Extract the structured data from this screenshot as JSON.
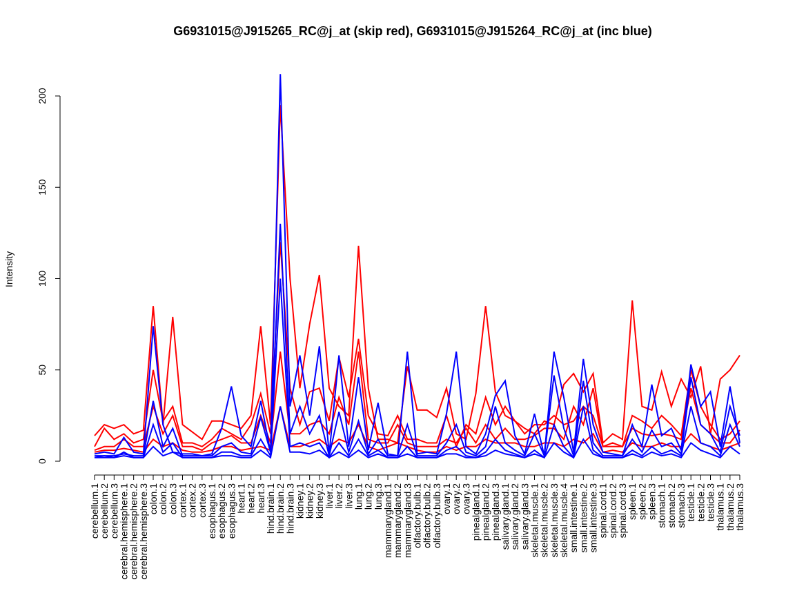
{
  "chart_data": {
    "type": "line",
    "title": "G6931015@J915265_RC@j_at (skip red), G6931015@J915264_RC@j_at (inc blue)",
    "xlabel": "",
    "ylabel": "Intensity",
    "ylim": [
      0,
      212
    ],
    "yticks": [
      0,
      50,
      100,
      150,
      200
    ],
    "grid": false,
    "categories": [
      "cerebellum.1",
      "cerebellum.2",
      "cerebellum.3",
      "cerebral.hemisphere.1",
      "cerebral.hemisphere.2",
      "cerebral.hemisphere.3",
      "colon.1",
      "colon.2",
      "colon.3",
      "cortex.1",
      "cortex.2",
      "cortex.3",
      "esophagus.1",
      "esophagus.2",
      "esophagus.3",
      "heart.1",
      "heart.2",
      "heart.3",
      "hind.brain.1",
      "hind.brain.2",
      "hind.brain.3",
      "kidney.1",
      "kidney.2",
      "kidney.3",
      "liver.1",
      "liver.2",
      "liver.3",
      "lung.1",
      "lung.2",
      "lung.3",
      "mammarygland.1",
      "mammarygland.2",
      "mammarygland.3",
      "olfactory.bulb.1",
      "olfactory.bulb.2",
      "olfactory.bulb.3",
      "ovary.1",
      "ovary.2",
      "ovary.3",
      "pinealgland.1",
      "pinealgland.2",
      "pinealgland.3",
      "salivary.gland.1",
      "salivary.gland.2",
      "salivary.gland.3",
      "skeletal.muscle.1",
      "skeletal.muscle.2",
      "skeletal.muscle.3",
      "skeletal.muscle.4",
      "small.intestine.1",
      "small.intestine.2",
      "small.intestine.3",
      "spinal.cord.1",
      "spinal.cord.2",
      "spinal.cord.3",
      "spleen.1",
      "spleen.2",
      "spleen.3",
      "stomach.1",
      "stomach.2",
      "stomach.3",
      "testicle.1",
      "testicle.2",
      "testicle.3",
      "thalamus.1",
      "thalamus.2",
      "thalamus.3"
    ],
    "series": [
      {
        "name": "skip red 1",
        "color": "#ff0000",
        "values": [
          14,
          20,
          18,
          20,
          15,
          17,
          85,
          20,
          79,
          20,
          16,
          12,
          22,
          22,
          20,
          18,
          25,
          74,
          20,
          195,
          100,
          40,
          75,
          102,
          40,
          30,
          25,
          118,
          40,
          12,
          12,
          10,
          52,
          28,
          28,
          24,
          40,
          15,
          12,
          37,
          85,
          38,
          25,
          22,
          18,
          15,
          22,
          20,
          42,
          48,
          38,
          48,
          10,
          15,
          12,
          88,
          30,
          28,
          49,
          30,
          45,
          35,
          52,
          15,
          45,
          50,
          58
        ]
      },
      {
        "name": "skip red 2",
        "color": "#ff0000",
        "values": [
          8,
          18,
          12,
          15,
          10,
          12,
          50,
          22,
          30,
          10,
          10,
          8,
          12,
          18,
          15,
          12,
          20,
          37,
          15,
          120,
          40,
          20,
          38,
          40,
          22,
          57,
          35,
          67,
          25,
          15,
          14,
          25,
          12,
          12,
          10,
          10,
          25,
          8,
          20,
          15,
          35,
          20,
          30,
          22,
          15,
          20,
          20,
          25,
          20,
          22,
          30,
          25,
          8,
          10,
          8,
          25,
          22,
          18,
          25,
          20,
          14,
          50,
          30,
          20,
          12,
          15,
          22
        ]
      },
      {
        "name": "skip red 3",
        "color": "#ff0000",
        "values": [
          6,
          8,
          8,
          12,
          8,
          8,
          30,
          15,
          25,
          8,
          8,
          6,
          10,
          12,
          14,
          10,
          10,
          25,
          10,
          60,
          15,
          15,
          20,
          22,
          15,
          35,
          20,
          60,
          12,
          10,
          10,
          20,
          10,
          8,
          8,
          8,
          12,
          10,
          18,
          10,
          20,
          12,
          18,
          12,
          12,
          14,
          18,
          18,
          12,
          30,
          20,
          40,
          8,
          8,
          8,
          18,
          15,
          14,
          15,
          14,
          12,
          40,
          20,
          15,
          10,
          10,
          17
        ]
      },
      {
        "name": "skip red 4",
        "color": "#ff0000",
        "values": [
          5,
          6,
          6,
          7,
          6,
          5,
          12,
          8,
          10,
          6,
          5,
          5,
          6,
          8,
          8,
          6,
          7,
          8,
          6,
          30,
          8,
          8,
          10,
          12,
          8,
          12,
          10,
          20,
          8,
          6,
          8,
          10,
          8,
          6,
          5,
          5,
          8,
          6,
          8,
          8,
          12,
          10,
          10,
          10,
          8,
          8,
          10,
          10,
          8,
          12,
          10,
          15,
          5,
          6,
          5,
          10,
          8,
          8,
          10,
          8,
          8,
          15,
          10,
          8,
          6,
          8,
          10
        ]
      },
      {
        "name": "inc blue 1",
        "color": "#0000ff",
        "values": [
          4,
          5,
          4,
          13,
          5,
          4,
          74,
          20,
          5,
          4,
          4,
          3,
          4,
          18,
          41,
          14,
          8,
          33,
          5,
          212,
          30,
          58,
          25,
          63,
          4,
          58,
          8,
          46,
          6,
          32,
          4,
          3,
          60,
          4,
          5,
          4,
          26,
          60,
          8,
          4,
          15,
          36,
          44,
          14,
          4,
          26,
          3,
          60,
          35,
          5,
          56,
          20,
          5,
          4,
          3,
          20,
          8,
          42,
          14,
          18,
          6,
          53,
          30,
          38,
          8,
          41,
          10
        ]
      },
      {
        "name": "inc blue 2",
        "color": "#0000ff",
        "values": [
          3,
          3,
          3,
          4,
          3,
          3,
          33,
          8,
          18,
          3,
          3,
          3,
          3,
          8,
          10,
          5,
          4,
          24,
          5,
          130,
          15,
          30,
          15,
          25,
          3,
          27,
          5,
          22,
          4,
          12,
          3,
          3,
          20,
          3,
          3,
          3,
          10,
          20,
          5,
          3,
          8,
          30,
          10,
          6,
          3,
          15,
          3,
          47,
          18,
          3,
          44,
          10,
          3,
          3,
          3,
          12,
          5,
          17,
          8,
          10,
          4,
          46,
          20,
          15,
          5,
          30,
          14
        ]
      },
      {
        "name": "inc blue 3",
        "color": "#0000ff",
        "values": [
          2,
          3,
          2,
          5,
          2,
          2,
          20,
          5,
          10,
          2,
          2,
          2,
          2,
          5,
          5,
          3,
          3,
          12,
          3,
          100,
          8,
          10,
          8,
          10,
          2,
          10,
          3,
          12,
          3,
          6,
          2,
          2,
          8,
          2,
          2,
          2,
          6,
          8,
          3,
          2,
          5,
          12,
          6,
          4,
          2,
          6,
          2,
          20,
          8,
          2,
          30,
          6,
          2,
          2,
          2,
          6,
          3,
          8,
          4,
          6,
          3,
          30,
          10,
          8,
          3,
          20,
          8
        ]
      },
      {
        "name": "inc blue 4",
        "color": "#0000ff",
        "values": [
          2,
          2,
          2,
          3,
          2,
          2,
          8,
          3,
          5,
          2,
          2,
          2,
          2,
          3,
          3,
          2,
          2,
          6,
          2,
          30,
          5,
          5,
          4,
          6,
          2,
          5,
          2,
          6,
          2,
          4,
          2,
          2,
          4,
          2,
          2,
          2,
          4,
          4,
          2,
          2,
          3,
          6,
          4,
          3,
          2,
          4,
          2,
          10,
          5,
          2,
          12,
          4,
          2,
          2,
          2,
          4,
          2,
          5,
          3,
          4,
          2,
          10,
          6,
          4,
          2,
          8,
          4
        ]
      }
    ]
  }
}
